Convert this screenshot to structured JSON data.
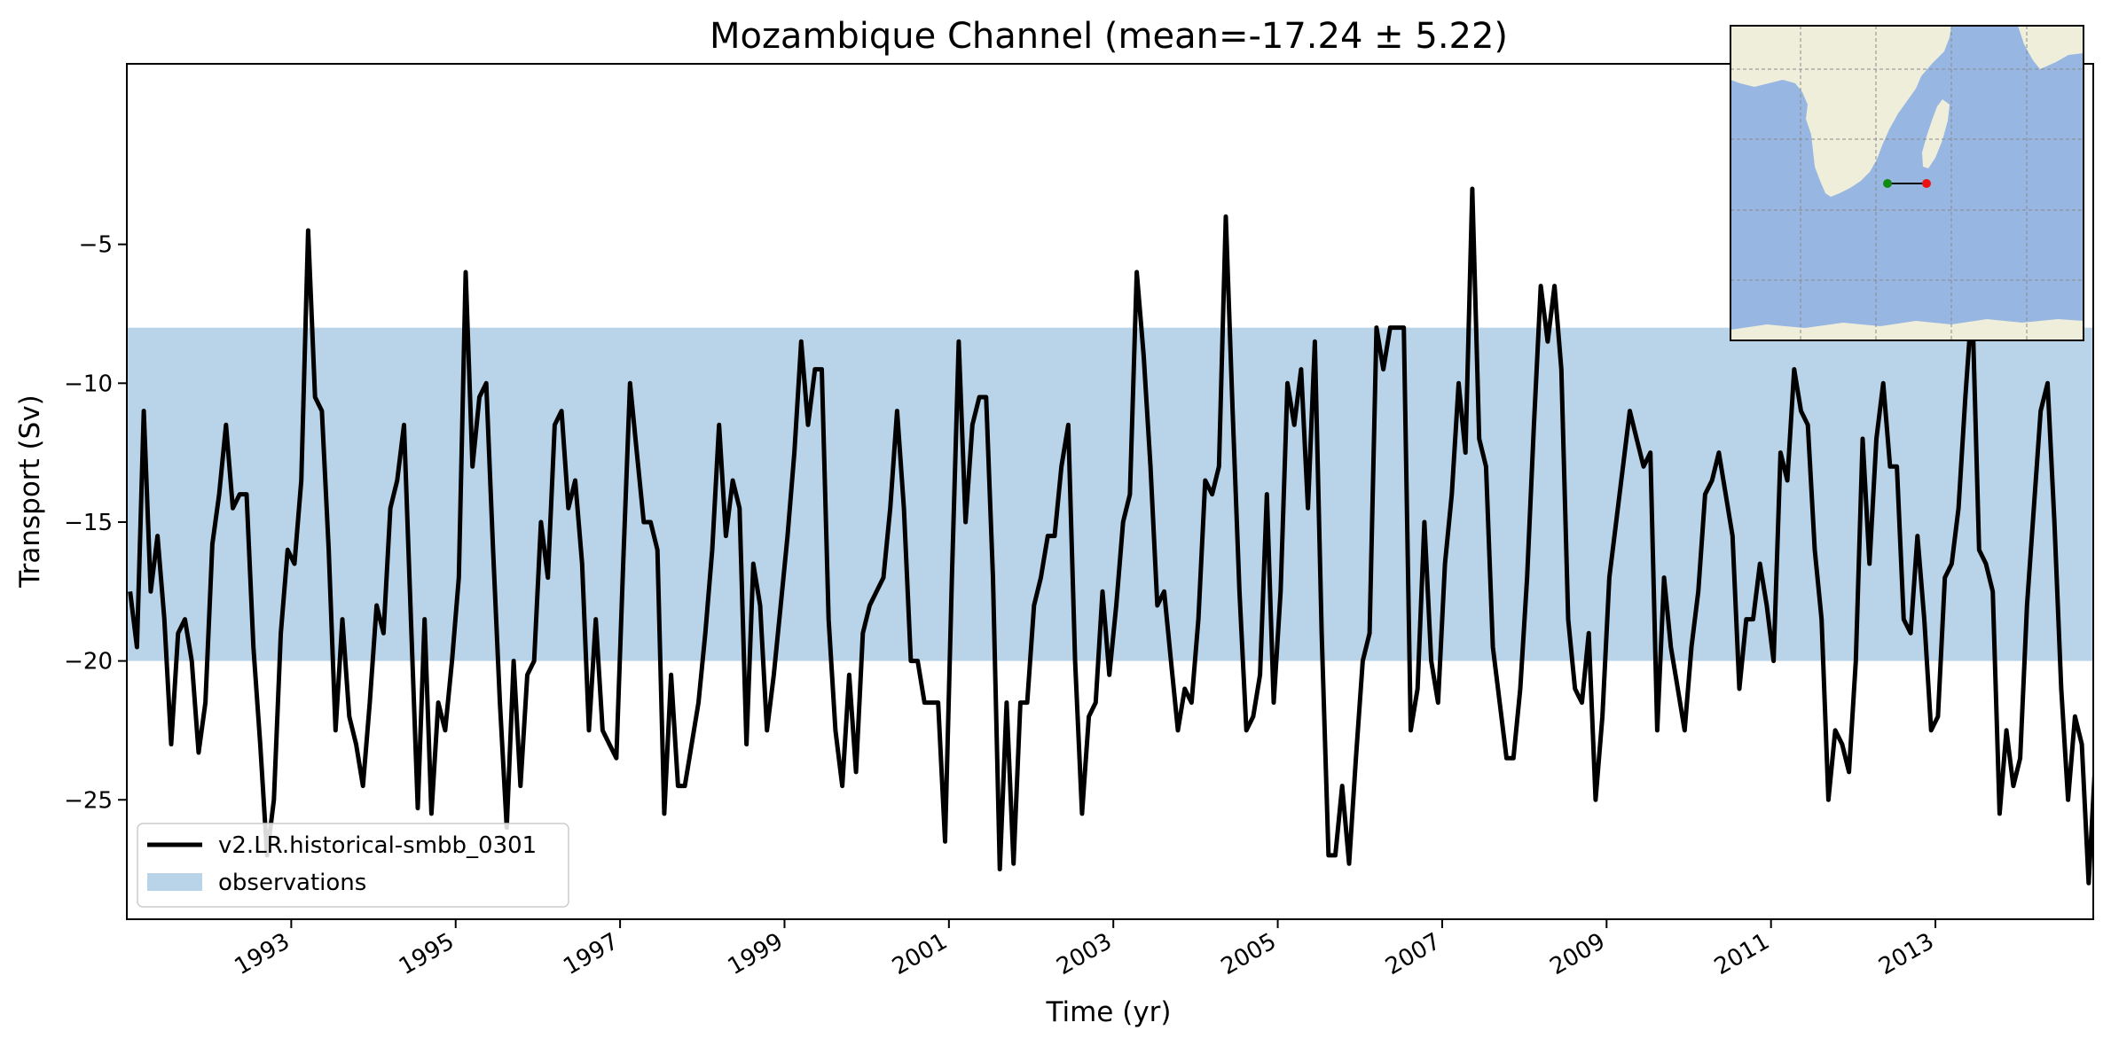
{
  "chart_data": {
    "type": "line",
    "title": "Mozambique Channel (mean=-17.24 ± 5.22)",
    "xlabel": "Time (yr)",
    "ylabel": "Transport (Sv)",
    "xlim": [
      1991.0,
      2014.92
    ],
    "ylim": [
      -29.3,
      1.5
    ],
    "x_tick_values": [
      1993,
      1995,
      1997,
      1999,
      2001,
      2003,
      2005,
      2007,
      2009,
      2011,
      2013
    ],
    "x_tick_labels": [
      "1993",
      "1995",
      "1997",
      "1999",
      "2001",
      "2003",
      "2005",
      "2007",
      "2009",
      "2011",
      "2013"
    ],
    "y_tick_values": [
      -5,
      -10,
      -15,
      -20,
      -25
    ],
    "y_tick_labels": [
      "−5",
      "−10",
      "−15",
      "−20",
      "−25"
    ],
    "grid": false,
    "legend_placement": "lower-left",
    "observations": {
      "name": "observations",
      "lower": -20,
      "upper": -8,
      "color": "#b9d4e8"
    },
    "series": [
      {
        "name": "v2.LR.historical-smbb_0301",
        "color": "#000000",
        "x_start": 1991.04,
        "x_step": 0.0833,
        "values": [
          -17.5,
          -19.5,
          -11,
          -17.5,
          -15.5,
          -18.5,
          -23,
          -19,
          -18.5,
          -20,
          -23.3,
          -21.5,
          -15.8,
          -14,
          -11.5,
          -14.5,
          -14,
          -14,
          -19.5,
          -23,
          -27,
          -25,
          -19,
          -16,
          -16.5,
          -13.5,
          -4.5,
          -10.5,
          -11,
          -16,
          -22.5,
          -18.5,
          -22,
          -23,
          -24.5,
          -21.5,
          -18,
          -19,
          -14.5,
          -13.5,
          -11.5,
          -18.5,
          -25.3,
          -18.5,
          -25.5,
          -21.5,
          -22.5,
          -20,
          -17,
          -6,
          -13,
          -10.5,
          -10,
          -16,
          -21.5,
          -26,
          -20,
          -24.5,
          -20.5,
          -20,
          -15,
          -17,
          -11.5,
          -11,
          -14.5,
          -13.5,
          -16.5,
          -22.5,
          -18.5,
          -22.5,
          -23,
          -23.5,
          -16.5,
          -10,
          -12.5,
          -15,
          -15,
          -16,
          -25.5,
          -20.5,
          -24.5,
          -24.5,
          -23,
          -21.5,
          -19,
          -16,
          -11.5,
          -15.5,
          -13.5,
          -14.5,
          -23,
          -16.5,
          -18,
          -22.5,
          -20.5,
          -18,
          -15.5,
          -12.5,
          -8.5,
          -11.5,
          -9.5,
          -9.5,
          -18.5,
          -22.5,
          -24.5,
          -20.5,
          -24,
          -19,
          -18,
          -17.5,
          -17,
          -14.5,
          -11,
          -14.5,
          -20,
          -20,
          -21.5,
          -21.5,
          -21.5,
          -26.5,
          -17,
          -8.5,
          -15,
          -11.5,
          -10.5,
          -10.5,
          -17,
          -27.5,
          -21.5,
          -27.3,
          -21.5,
          -21.5,
          -18,
          -17,
          -15.5,
          -15.5,
          -13,
          -11.5,
          -20,
          -25.5,
          -22,
          -21.5,
          -17.5,
          -20.5,
          -18,
          -15,
          -14,
          -6,
          -9,
          -13,
          -18,
          -17.5,
          -20,
          -22.5,
          -21,
          -21.5,
          -18.5,
          -13.5,
          -14,
          -13,
          -4,
          -11,
          -17.5,
          -22.5,
          -22,
          -20.5,
          -14,
          -21.5,
          -17.5,
          -10,
          -11.5,
          -9.5,
          -14.5,
          -8.5,
          -19,
          -27,
          -27,
          -24.5,
          -27.3,
          -23.5,
          -20,
          -19,
          -8,
          -9.5,
          -8,
          -8,
          -8,
          -22.5,
          -21,
          -15,
          -20,
          -21.5,
          -16.5,
          -14,
          -10,
          -12.5,
          -3,
          -12,
          -13,
          -19.5,
          -21.5,
          -23.5,
          -23.5,
          -21,
          -17,
          -11.5,
          -6.5,
          -8.5,
          -6.5,
          -9.5,
          -18.5,
          -21,
          -21.5,
          -19,
          -25,
          -22,
          -17,
          -15,
          -13,
          -11,
          -12,
          -13,
          -12.5,
          -22.5,
          -17,
          -19.5,
          -21,
          -22.5,
          -19.5,
          -17.5,
          -14,
          -13.5,
          -12.5,
          -14,
          -15.5,
          -21,
          -18.5,
          -18.5,
          -16.5,
          -18,
          -20,
          -12.5,
          -13.5,
          -9.5,
          -11,
          -11.5,
          -16,
          -18.5,
          -25,
          -22.5,
          -23,
          -24,
          -20,
          -12,
          -16.5,
          -12,
          -10,
          -13,
          -13,
          -18.5,
          -19,
          -15.5,
          -18.5,
          -22.5,
          -22,
          -17,
          -16.5,
          -14.5,
          -10.5,
          -7,
          -16,
          -16.5,
          -17.5,
          -25.5,
          -22.5,
          -24.5,
          -23.5,
          -18,
          -14.5,
          -11,
          -10,
          -15,
          -21,
          -25,
          -22,
          -23,
          -28,
          -23.5,
          -13
        ]
      }
    ]
  },
  "inset_map": {
    "land_color": "#efeedb",
    "ocean_color": "#97b6e2",
    "transect_start_color": "#108a10",
    "transect_end_color": "#ee1111"
  }
}
